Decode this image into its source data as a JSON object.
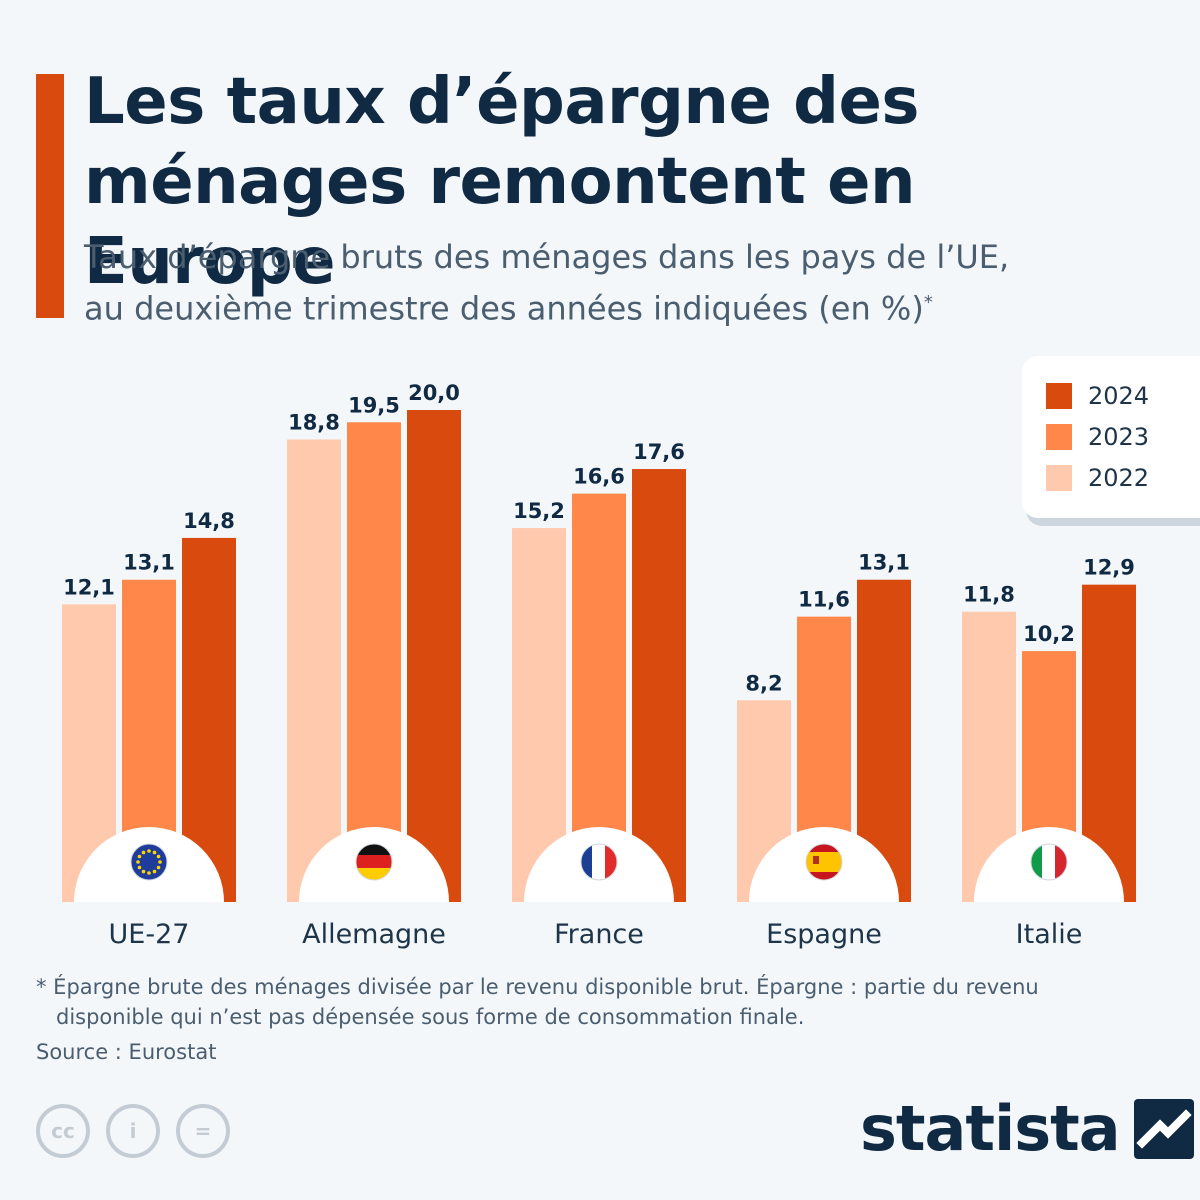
{
  "title": "Les taux d’épargne des ménages remontent en Europe",
  "subtitle_line1": "Taux d’épargne bruts des ménages dans les pays de l’UE,",
  "subtitle_line2": "au deuxième trimestre des années indiquées (en %)",
  "subtitle_mark": "*",
  "colors": {
    "2022": "#ffc9ad",
    "2023": "#ff874a",
    "2024": "#d94a0f",
    "text_dark": "#0f2a42"
  },
  "chart_data": {
    "type": "bar",
    "title": "Les taux d’épargne des ménages remontent en Europe",
    "categories": [
      "UE-27",
      "Allemagne",
      "France",
      "Espagne",
      "Italie"
    ],
    "flags": [
      "eu-flag-icon",
      "germany-flag-icon",
      "france-flag-icon",
      "spain-flag-icon",
      "italy-flag-icon"
    ],
    "series": [
      {
        "name": "2022",
        "values": [
          12.1,
          18.8,
          15.2,
          8.2,
          11.8
        ],
        "labels": [
          "12,1",
          "18,8",
          "15,2",
          "8,2",
          "11,8"
        ]
      },
      {
        "name": "2023",
        "values": [
          13.1,
          19.5,
          16.6,
          11.6,
          10.2
        ],
        "labels": [
          "13,1",
          "19,5",
          "16,6",
          "11,6",
          "10,2"
        ]
      },
      {
        "name": "2024",
        "values": [
          14.8,
          20.0,
          17.6,
          13.1,
          12.9
        ],
        "labels": [
          "14,8",
          "20,0",
          "17,6",
          "13,1",
          "12,9"
        ]
      }
    ],
    "ylim": [
      0,
      20
    ],
    "grid": false,
    "legend": "top-right",
    "legend_order": [
      "2024",
      "2023",
      "2022"
    ]
  },
  "footnote_line1": "* Épargne brute des ménages divisée par le revenu disponible brut. Épargne : partie du revenu",
  "footnote_line2": "disponible qui n’est pas dépensée sous forme de consommation finale.",
  "source": "Source : Eurostat",
  "license_icons": [
    "creative-commons-icon",
    "attribution-icon",
    "no-derivatives-icon"
  ],
  "license_glyphs": [
    "cc",
    "i",
    "="
  ],
  "brand": "statista"
}
